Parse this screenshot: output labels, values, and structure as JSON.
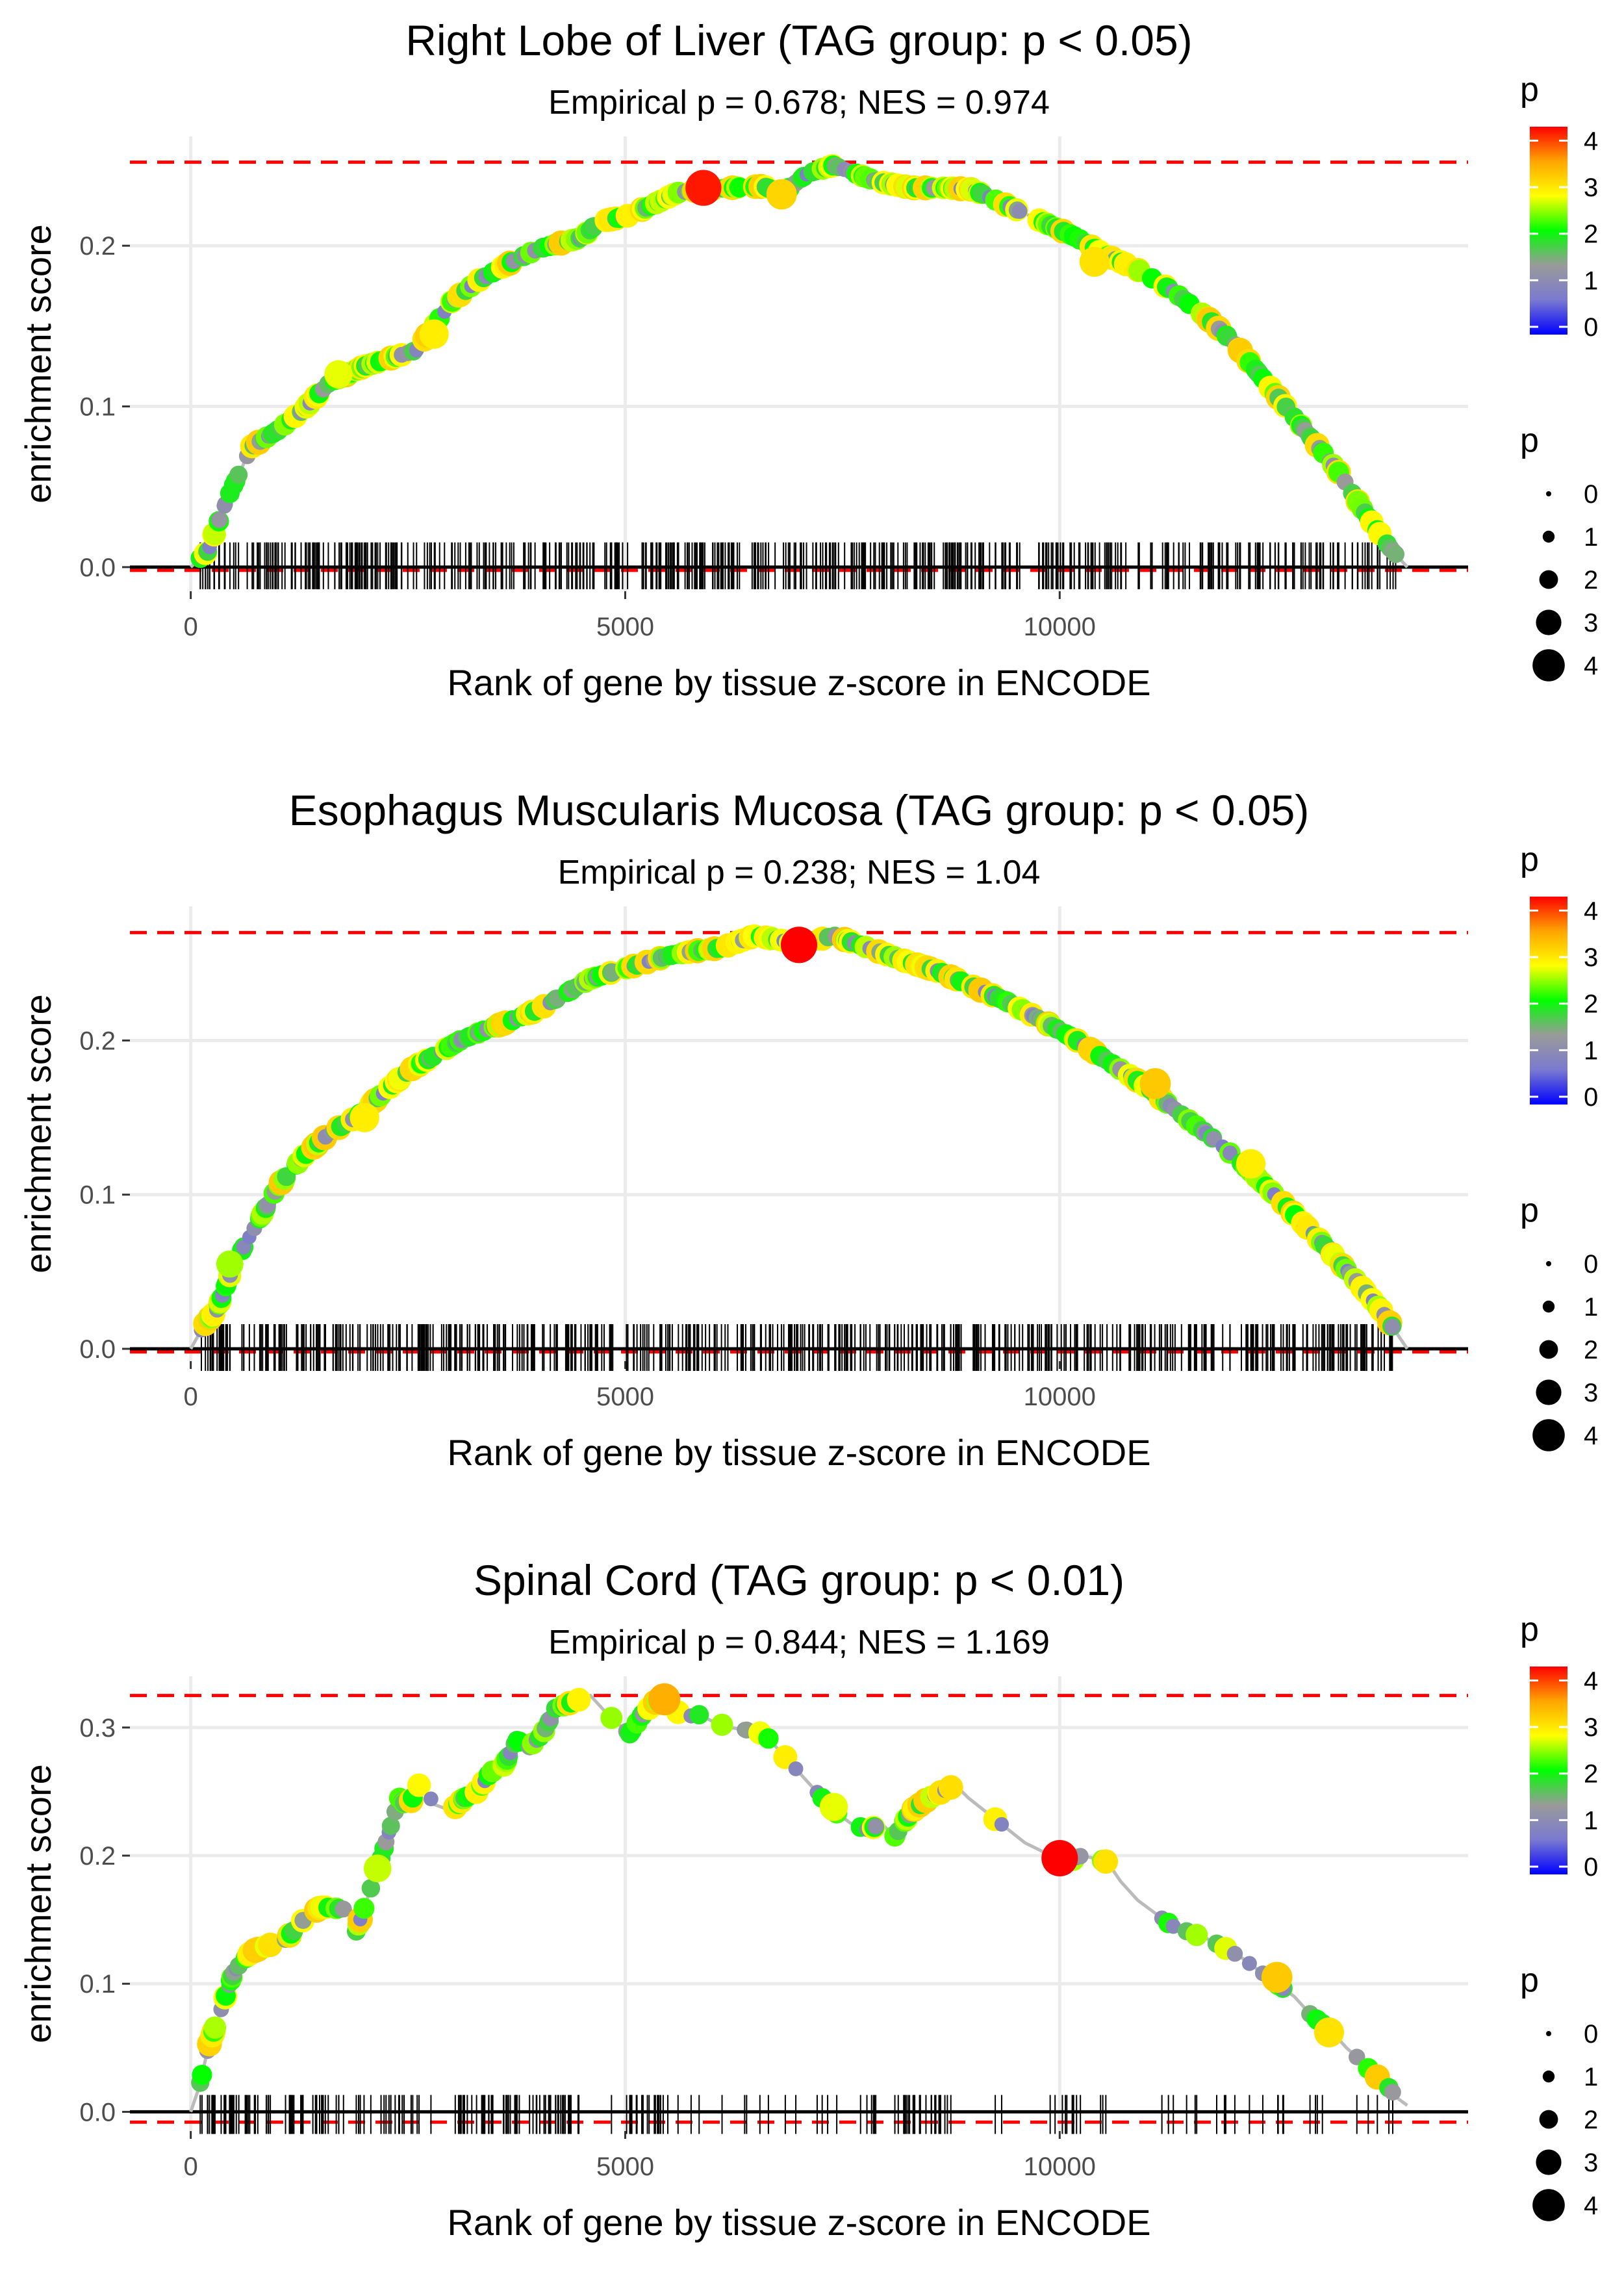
{
  "colors": {
    "gradient": [
      "#0000ff",
      "#7a7ad0",
      "#9a9a9a",
      "#00ff00",
      "#ffff00",
      "#ffa500",
      "#ff0000"
    ],
    "threshold_line": "#ff0000",
    "track_line": "#bbbbbb",
    "grid": "#ebebeb",
    "axis_text": "#4d4d4d"
  },
  "chart_data": [
    {
      "type": "line",
      "title": "Right Lobe of Liver (TAG group: p < 0.05)",
      "subtitle": "Empirical p = 0.678; NES = 0.974",
      "xlabel": "Rank of gene by tissue z-score in ENCODE",
      "ylabel": "enrichment score",
      "xlim": [
        -700,
        14700
      ],
      "ylim": [
        -0.015,
        0.268
      ],
      "x_ticks": [
        0,
        5000,
        10000
      ],
      "x_tick_labels": [
        "0",
        "5000",
        "10000"
      ],
      "y_ticks": [
        0.0,
        0.1,
        0.2
      ],
      "y_tick_labels": [
        "0.0",
        "0.1",
        "0.2"
      ],
      "max_es": 0.252,
      "min_es": -0.002,
      "n_genes": 14000,
      "series": [
        {
          "name": "running enrichment score",
          "x": [
            0,
            200,
            400,
            700,
            1000,
            1300,
            1600,
            2000,
            2300,
            2600,
            2800,
            3000,
            3300,
            3700,
            4000,
            4500,
            4700,
            5000,
            5300,
            5600,
            5900,
            6200,
            6600,
            6800,
            7100,
            7400,
            7600,
            7900,
            8300,
            8700,
            9000,
            9400,
            9800,
            10200,
            10500,
            10900,
            11300,
            11700,
            12000,
            12300,
            12600,
            12900,
            13200,
            13500,
            13800,
            14000
          ],
          "y": [
            0.0,
            0.01,
            0.04,
            0.075,
            0.085,
            0.098,
            0.115,
            0.125,
            0.13,
            0.135,
            0.15,
            0.165,
            0.178,
            0.19,
            0.198,
            0.205,
            0.215,
            0.218,
            0.225,
            0.233,
            0.235,
            0.236,
            0.237,
            0.232,
            0.245,
            0.25,
            0.246,
            0.24,
            0.236,
            0.236,
            0.235,
            0.225,
            0.215,
            0.205,
            0.195,
            0.185,
            0.172,
            0.155,
            0.14,
            0.12,
            0.1,
            0.08,
            0.06,
            0.035,
            0.012,
            0.0
          ]
        }
      ],
      "highlight_points": [
        {
          "x": 5900,
          "y": 0.236,
          "p": 4.2
        },
        {
          "x": 6800,
          "y": 0.232,
          "p": 3.2
        },
        {
          "x": 1700,
          "y": 0.12,
          "p": 2.8
        },
        {
          "x": 2800,
          "y": 0.145,
          "p": 3.0
        },
        {
          "x": 10400,
          "y": 0.19,
          "p": 3.1
        }
      ],
      "color_legend": {
        "title": "p",
        "ticks": [
          0,
          1,
          2,
          3,
          4
        ]
      },
      "size_legend": {
        "title": "p",
        "values": [
          "0",
          "1",
          "2",
          "3",
          "4"
        ]
      },
      "seed": 11
    },
    {
      "type": "line",
      "title": "Esophagus Muscularis Mucosa (TAG group: p < 0.05)",
      "subtitle": "Empirical p = 0.238; NES = 1.04",
      "xlabel": "Rank of gene by tissue z-score in ENCODE",
      "ylabel": "enrichment score",
      "xlim": [
        -700,
        14700
      ],
      "ylim": [
        -0.008,
        0.287
      ],
      "x_ticks": [
        0,
        5000,
        10000
      ],
      "x_tick_labels": [
        "0",
        "5000",
        "10000"
      ],
      "y_ticks": [
        0.0,
        0.1,
        0.2
      ],
      "y_tick_labels": [
        "0.0",
        "0.1",
        "0.2"
      ],
      "max_es": 0.27,
      "min_es": -0.002,
      "n_genes": 14000,
      "series": [
        {
          "name": "running enrichment score",
          "x": [
            0,
            150,
            300,
            500,
            700,
            1000,
            1300,
            1600,
            1900,
            2200,
            2500,
            2800,
            3100,
            3400,
            3700,
            4000,
            4300,
            4600,
            4900,
            5200,
            5500,
            5800,
            6100,
            6500,
            6800,
            7000,
            7200,
            7400,
            7800,
            8200,
            8600,
            9000,
            9400,
            9800,
            10200,
            10600,
            11000,
            11400,
            11800,
            12200,
            12600,
            13000,
            13400,
            13700,
            14000
          ],
          "y": [
            0.0,
            0.015,
            0.025,
            0.055,
            0.075,
            0.105,
            0.125,
            0.14,
            0.15,
            0.165,
            0.18,
            0.19,
            0.2,
            0.207,
            0.213,
            0.22,
            0.23,
            0.24,
            0.245,
            0.25,
            0.255,
            0.258,
            0.26,
            0.268,
            0.265,
            0.262,
            0.265,
            0.268,
            0.26,
            0.252,
            0.245,
            0.235,
            0.225,
            0.213,
            0.2,
            0.185,
            0.17,
            0.152,
            0.135,
            0.115,
            0.093,
            0.07,
            0.045,
            0.025,
            0.0
          ]
        }
      ],
      "highlight_points": [
        {
          "x": 7000,
          "y": 0.262,
          "p": 4.3
        },
        {
          "x": 11100,
          "y": 0.172,
          "p": 3.3
        },
        {
          "x": 12200,
          "y": 0.12,
          "p": 3.0
        },
        {
          "x": 2000,
          "y": 0.15,
          "p": 3.0
        },
        {
          "x": 450,
          "y": 0.055,
          "p": 2.6
        }
      ],
      "color_legend": {
        "title": "p",
        "ticks": [
          0,
          1,
          2,
          3,
          4
        ]
      },
      "size_legend": {
        "title": "p",
        "values": [
          "0",
          "1",
          "2",
          "3",
          "4"
        ]
      },
      "seed": 23
    },
    {
      "type": "line",
      "title": "Spinal Cord (TAG group: p < 0.01)",
      "subtitle": "Empirical p = 0.844; NES = 1.169",
      "xlabel": "Rank of gene by tissue z-score in ENCODE",
      "ylabel": "enrichment score",
      "xlim": [
        -700,
        14700
      ],
      "ylim": [
        -0.015,
        0.34
      ],
      "x_ticks": [
        0,
        5000,
        10000
      ],
      "x_tick_labels": [
        "0",
        "5000",
        "10000"
      ],
      "y_ticks": [
        0.0,
        0.1,
        0.2,
        0.3
      ],
      "y_tick_labels": [
        "0.0",
        "0.1",
        "0.2",
        "0.3"
      ],
      "max_es": 0.325,
      "min_es": -0.008,
      "n_genes": 14000,
      "series": [
        {
          "name": "running enrichment score",
          "x": [
            0,
            100,
            200,
            350,
            500,
            700,
            900,
            1100,
            1300,
            1500,
            1800,
            1900,
            2000,
            2100,
            2200,
            2400,
            2500,
            2650,
            2800,
            3000,
            3150,
            3300,
            3450,
            3600,
            3750,
            3900,
            4050,
            4200,
            4400,
            4600,
            4800,
            5050,
            5200,
            5350,
            5500,
            5650,
            5850,
            6000,
            6200,
            6400,
            6600,
            7400,
            7600,
            7800,
            7950,
            8100,
            8300,
            8500,
            8650,
            8800,
            8950,
            9600,
            9900,
            10000,
            10100,
            10250,
            10400,
            10550,
            10700,
            10900,
            11100,
            11300,
            11500,
            11700,
            11900,
            12100,
            12300,
            12500,
            12700,
            12900,
            13100,
            13300,
            13500,
            13600,
            13700,
            13800,
            13900,
            14000
          ],
          "y": [
            0.0,
            0.02,
            0.05,
            0.08,
            0.11,
            0.125,
            0.13,
            0.135,
            0.15,
            0.16,
            0.158,
            0.14,
            0.16,
            0.18,
            0.2,
            0.245,
            0.238,
            0.258,
            0.24,
            0.235,
            0.245,
            0.25,
            0.265,
            0.27,
            0.29,
            0.285,
            0.295,
            0.315,
            0.32,
            0.325,
            0.31,
            0.295,
            0.31,
            0.32,
            0.322,
            0.308,
            0.31,
            0.305,
            0.3,
            0.298,
            0.295,
            0.235,
            0.225,
            0.22,
            0.225,
            0.215,
            0.235,
            0.245,
            0.25,
            0.255,
            0.245,
            0.21,
            0.2,
            0.198,
            0.195,
            0.2,
            0.198,
            0.195,
            0.18,
            0.165,
            0.155,
            0.145,
            0.14,
            0.135,
            0.128,
            0.12,
            0.11,
            0.1,
            0.09,
            0.075,
            0.065,
            0.05,
            0.038,
            0.03,
            0.025,
            0.018,
            0.01,
            0.005
          ]
        }
      ],
      "highlight_points": [
        {
          "x": 10000,
          "y": 0.198,
          "p": 4.3
        },
        {
          "x": 5450,
          "y": 0.322,
          "p": 3.5
        },
        {
          "x": 12500,
          "y": 0.105,
          "p": 3.3
        },
        {
          "x": 13100,
          "y": 0.062,
          "p": 3.1
        },
        {
          "x": 7400,
          "y": 0.238,
          "p": 2.8
        },
        {
          "x": 2150,
          "y": 0.19,
          "p": 2.7
        }
      ],
      "color_legend": {
        "title": "p",
        "ticks": [
          0,
          1,
          2,
          3,
          4
        ]
      },
      "size_legend": {
        "title": "p",
        "values": [
          "0",
          "1",
          "2",
          "3",
          "4"
        ]
      },
      "seed": 37
    }
  ]
}
